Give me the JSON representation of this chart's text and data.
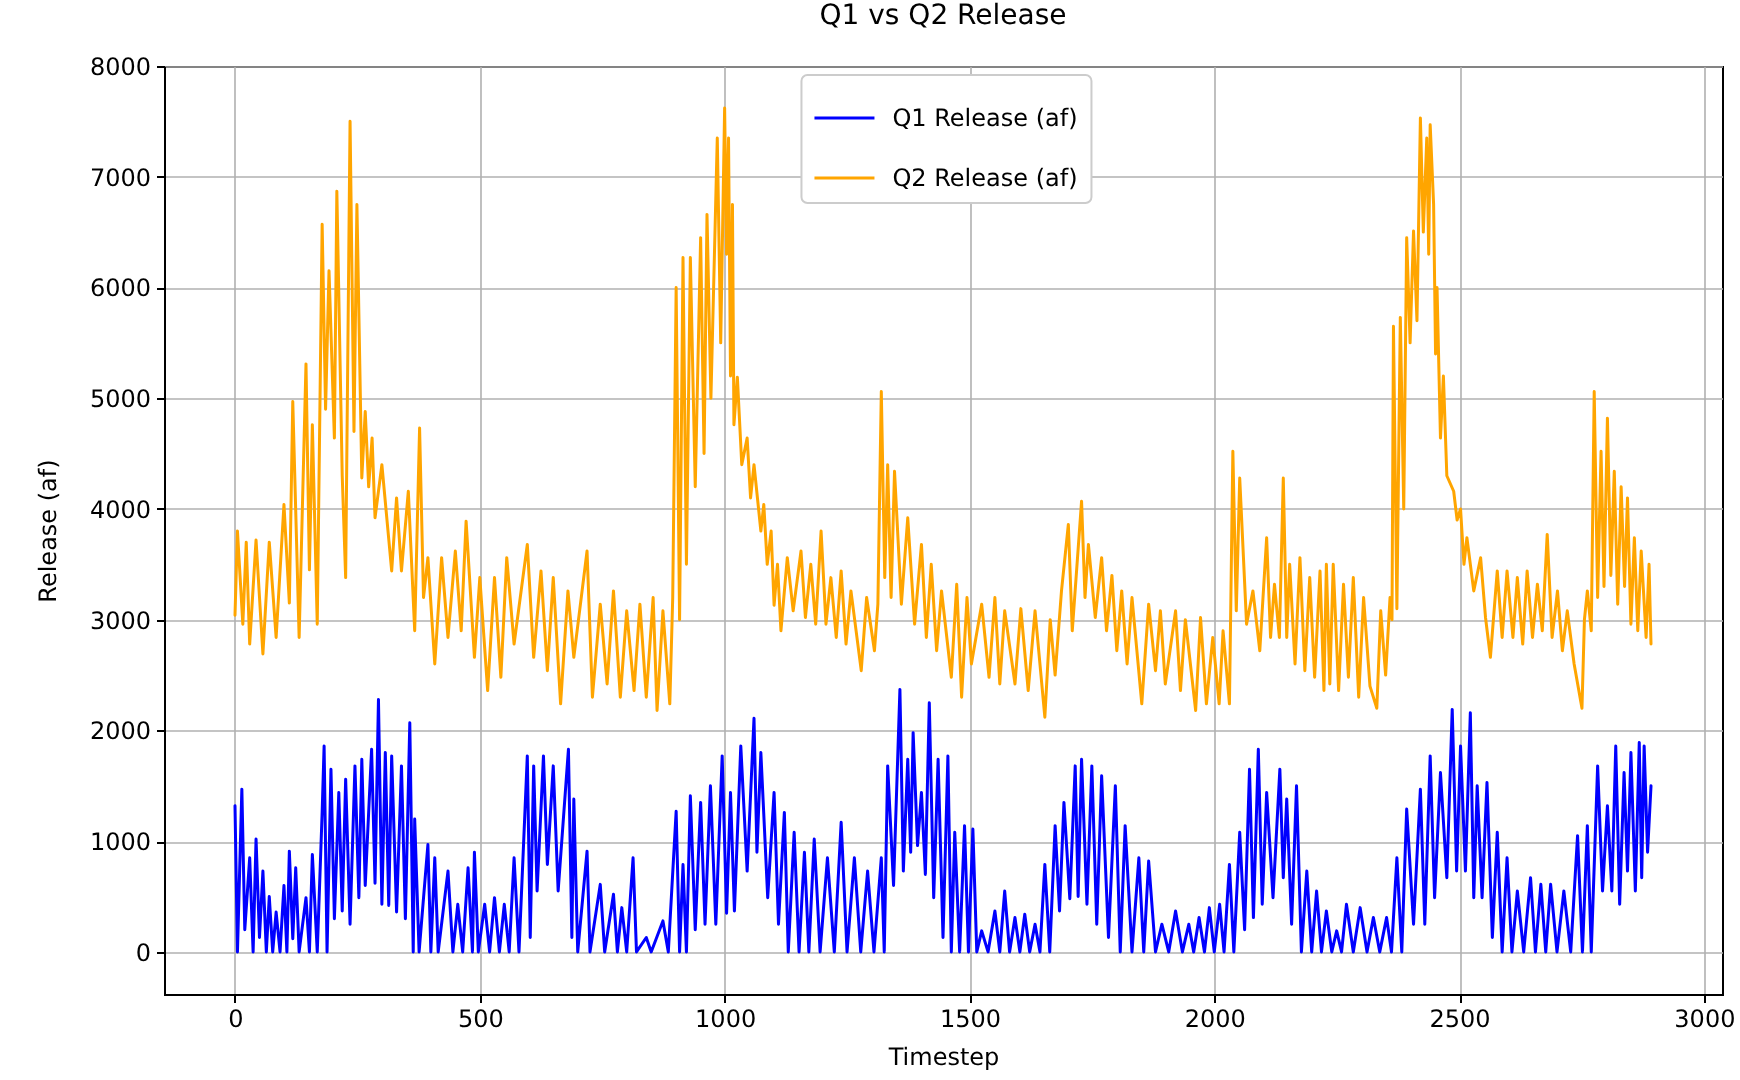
{
  "chart_data": {
    "type": "line",
    "title": "Q1 vs Q2 Release",
    "xlabel": "Timestep",
    "ylabel": "Release (af)",
    "xlim": [
      -145,
      3037
    ],
    "ylim": [
      -380,
      8000
    ],
    "xticks": [
      0,
      500,
      1000,
      1500,
      2000,
      2500,
      3000
    ],
    "yticks": [
      0,
      1000,
      2000,
      3000,
      4000,
      5000,
      6000,
      7000,
      8000
    ],
    "grid": true,
    "legend": "top",
    "series": [
      {
        "name": "Q1 Release (af)",
        "color": "#0000ff",
        "x": [
          0,
          5,
          14,
          20,
          30,
          37,
          43,
          50,
          57,
          64,
          70,
          77,
          84,
          92,
          100,
          106,
          111,
          118,
          124,
          131,
          145,
          152,
          158,
          168,
          178,
          182,
          188,
          196,
          203,
          212,
          219,
          226,
          235,
          245,
          253,
          259,
          266,
          279,
          286,
          293,
          300,
          307,
          314,
          320,
          330,
          340,
          348,
          357,
          364,
          367,
          376,
          394,
          400,
          408,
          415,
          435,
          445,
          455,
          465,
          476,
          485,
          489,
          497,
          510,
          520,
          530,
          540,
          550,
          560,
          570,
          580,
          597,
          603,
          610,
          617,
          630,
          638,
          650,
          660,
          681,
          688,
          692,
          700,
          719,
          725,
          746,
          755,
          773,
          781,
          790,
          800,
          813,
          820,
          840,
          850,
          874,
          885,
          901,
          908,
          915,
          922,
          930,
          940,
          951,
          960,
          971,
          982,
          995,
          1004,
          1012,
          1020,
          1033,
          1046,
          1060,
          1066,
          1074,
          1088,
          1101,
          1110,
          1122,
          1130,
          1142,
          1152,
          1163,
          1172,
          1183,
          1195,
          1210,
          1224,
          1238,
          1250,
          1265,
          1278,
          1292,
          1305,
          1320,
          1326,
          1333,
          1345,
          1358,
          1365,
          1374,
          1380,
          1385,
          1394,
          1402,
          1410,
          1418,
          1427,
          1436,
          1446,
          1456,
          1463,
          1470,
          1480,
          1490,
          1498,
          1507,
          1515,
          1525,
          1538,
          1552,
          1562,
          1572,
          1582,
          1593,
          1603,
          1613,
          1623,
          1634,
          1644,
          1654,
          1664,
          1675,
          1684,
          1693,
          1705,
          1716,
          1722,
          1729,
          1740,
          1750,
          1760,
          1770,
          1784,
          1798,
          1808,
          1818,
          1832,
          1846,
          1856,
          1866,
          1880,
          1893,
          1907,
          1921,
          1935,
          1948,
          1958,
          1969,
          1980,
          1990,
          2000,
          2011,
          2020,
          2031,
          2040,
          2052,
          2062,
          2072,
          2080,
          2090,
          2098,
          2107,
          2120,
          2134,
          2141,
          2148,
          2158,
          2168,
          2178,
          2189,
          2199,
          2209,
          2219,
          2229,
          2240,
          2250,
          2260,
          2270,
          2284,
          2298,
          2312,
          2325,
          2338,
          2352,
          2362,
          2373,
          2383,
          2393,
          2407,
          2421,
          2430,
          2441,
          2450,
          2462,
          2475,
          2486,
          2495,
          2503,
          2513,
          2523,
          2530,
          2537,
          2547,
          2557,
          2568,
          2578,
          2588,
          2598,
          2608,
          2619,
          2632,
          2646,
          2656,
          2667,
          2677,
          2687,
          2700,
          2714,
          2728,
          2742,
          2752,
          2762,
          2770,
          2783,
          2793,
          2803,
          2812,
          2820,
          2828,
          2837,
          2844,
          2851,
          2860,
          2868,
          2873,
          2878,
          2885,
          2892
        ],
        "values": [
          1320,
          0,
          1470,
          200,
          850,
          0,
          1020,
          130,
          730,
          0,
          500,
          0,
          360,
          0,
          600,
          0,
          910,
          120,
          760,
          0,
          490,
          0,
          880,
          0,
          1260,
          1860,
          0,
          1650,
          300,
          1440,
          370,
          1560,
          250,
          1680,
          490,
          1740,
          600,
          1830,
          620,
          2280,
          430,
          1800,
          420,
          1770,
          360,
          1680,
          300,
          2070,
          0,
          1200,
          0,
          970,
          0,
          850,
          0,
          730,
          0,
          430,
          0,
          760,
          0,
          900,
          0,
          430,
          0,
          490,
          0,
          430,
          0,
          850,
          0,
          1770,
          130,
          1680,
          550,
          1770,
          790,
          1680,
          550,
          1830,
          130,
          1380,
          0,
          910,
          0,
          610,
          0,
          520,
          0,
          400,
          0,
          850,
          0,
          130,
          0,
          280,
          0,
          1270,
          0,
          790,
          0,
          1410,
          200,
          1350,
          250,
          1500,
          250,
          1770,
          350,
          1440,
          370,
          1860,
          730,
          2110,
          900,
          1800,
          490,
          1440,
          250,
          1260,
          0,
          1080,
          0,
          900,
          0,
          1020,
          0,
          850,
          0,
          1170,
          0,
          850,
          0,
          730,
          0,
          850,
          0,
          1680,
          600,
          2370,
          730,
          1740,
          900,
          1980,
          960,
          1440,
          700,
          2250,
          490,
          1740,
          130,
          1770,
          0,
          1080,
          0,
          1140,
          0,
          1110,
          0,
          190,
          0,
          370,
          0,
          550,
          0,
          310,
          0,
          340,
          0,
          250,
          0,
          790,
          0,
          1140,
          370,
          1350,
          480,
          1680,
          500,
          1740,
          430,
          1680,
          250,
          1590,
          130,
          1500,
          0,
          1140,
          0,
          850,
          0,
          820,
          0,
          250,
          0,
          370,
          0,
          250,
          0,
          310,
          0,
          400,
          0,
          430,
          0,
          790,
          0,
          1080,
          200,
          1650,
          310,
          1830,
          430,
          1440,
          490,
          1650,
          670,
          1380,
          250,
          1500,
          0,
          730,
          0,
          550,
          0,
          370,
          0,
          190,
          0,
          430,
          0,
          400,
          0,
          310,
          0,
          310,
          0,
          850,
          0,
          1290,
          250,
          1470,
          250,
          1770,
          490,
          1620,
          670,
          2190,
          730,
          1860,
          730,
          2160,
          490,
          1500,
          490,
          1530,
          130,
          1080,
          0,
          850,
          0,
          550,
          0,
          670,
          0,
          610,
          0,
          610,
          0,
          550,
          0,
          1050,
          0,
          1140,
          0,
          1680,
          550,
          1320,
          550,
          1860,
          430,
          1620,
          730,
          1800,
          550,
          1890,
          670,
          1860,
          900,
          1500
        ]
      },
      {
        "name": "Q2 Release (af)",
        "color": "#ffa500",
        "x": [
          0,
          5,
          16,
          23,
          30,
          43,
          57,
          70,
          84,
          100,
          111,
          118,
          131,
          145,
          152,
          158,
          168,
          178,
          185,
          192,
          203,
          208,
          219,
          226,
          235,
          243,
          249,
          259,
          266,
          273,
          280,
          286,
          300,
          320,
          330,
          340,
          354,
          367,
          377,
          385,
          394,
          408,
          422,
          435,
          450,
          462,
          472,
          489,
          500,
          516,
          530,
          543,
          555,
          570,
          597,
          610,
          625,
          638,
          650,
          665,
          680,
          692,
          719,
          730,
          746,
          760,
          773,
          787,
          800,
          815,
          827,
          840,
          854,
          862,
          874,
          888,
          894,
          901,
          908,
          915,
          922,
          930,
          940,
          951,
          958,
          964,
          972,
          985,
          992,
          1000,
          1004,
          1008,
          1012,
          1016,
          1019,
          1026,
          1035,
          1046,
          1053,
          1060,
          1074,
          1080,
          1087,
          1095,
          1101,
          1108,
          1115,
          1128,
          1140,
          1156,
          1165,
          1176,
          1186,
          1197,
          1207,
          1217,
          1228,
          1238,
          1248,
          1258,
          1279,
          1290,
          1306,
          1313,
          1320,
          1327,
          1333,
          1340,
          1347,
          1361,
          1374,
          1388,
          1402,
          1412,
          1422,
          1433,
          1443,
          1463,
          1474,
          1484,
          1495,
          1504,
          1525,
          1540,
          1552,
          1562,
          1572,
          1593,
          1605,
          1620,
          1634,
          1654,
          1665,
          1675,
          1688,
          1702,
          1710,
          1729,
          1736,
          1743,
          1757,
          1770,
          1780,
          1791,
          1801,
          1811,
          1822,
          1832,
          1852,
          1866,
          1880,
          1890,
          1900,
          1921,
          1931,
          1941,
          1962,
          1972,
          1984,
          1997,
          2010,
          2018,
          2031,
          2038,
          2045,
          2052,
          2066,
          2079,
          2093,
          2107,
          2115,
          2123,
          2133,
          2141,
          2148,
          2154,
          2165,
          2175,
          2185,
          2195,
          2205,
          2216,
          2224,
          2229,
          2236,
          2243,
          2254,
          2264,
          2274,
          2284,
          2295,
          2305,
          2318,
          2332,
          2340,
          2350,
          2359,
          2363,
          2366,
          2373,
          2380,
          2387,
          2393,
          2400,
          2407,
          2414,
          2421,
          2427,
          2434,
          2438,
          2441,
          2448,
          2452,
          2455,
          2462,
          2468,
          2475,
          2489,
          2496,
          2503,
          2510,
          2516,
          2530,
          2544,
          2554,
          2564,
          2578,
          2588,
          2598,
          2610,
          2619,
          2630,
          2639,
          2650,
          2660,
          2670,
          2680,
          2690,
          2701,
          2711,
          2721,
          2735,
          2751,
          2756,
          2762,
          2770,
          2776,
          2783,
          2790,
          2796,
          2803,
          2810,
          2817,
          2824,
          2831,
          2838,
          2844,
          2851,
          2858,
          2865,
          2872,
          2882,
          2888,
          2892
        ],
        "values": [
          3040,
          3800,
          2960,
          3700,
          2780,
          3720,
          2690,
          3700,
          2840,
          4040,
          3150,
          4970,
          2840,
          5310,
          3450,
          4760,
          2960,
          6570,
          4900,
          6150,
          4640,
          6870,
          4300,
          3380,
          7500,
          4700,
          6750,
          4280,
          4880,
          4200,
          4640,
          3920,
          4400,
          3440,
          4100,
          3440,
          4160,
          2900,
          4730,
          3200,
          3560,
          2600,
          3560,
          2840,
          3620,
          2900,
          3890,
          2660,
          3380,
          2360,
          3380,
          2480,
          3560,
          2780,
          3680,
          2660,
          3440,
          2540,
          3380,
          2240,
          3260,
          2660,
          3620,
          2300,
          3140,
          2420,
          3260,
          2300,
          3080,
          2360,
          3140,
          2300,
          3200,
          2180,
          3080,
          2240,
          3200,
          6000,
          3000,
          6270,
          3500,
          6270,
          4200,
          6450,
          4500,
          6660,
          5000,
          7350,
          5500,
          7620,
          6300,
          7350,
          5200,
          6750,
          4760,
          5190,
          4400,
          4640,
          4100,
          4400,
          3800,
          4040,
          3500,
          3800,
          3130,
          3500,
          2900,
          3560,
          3080,
          3620,
          3020,
          3500,
          2960,
          3800,
          2960,
          3380,
          2840,
          3440,
          2780,
          3260,
          2540,
          3200,
          2720,
          3140,
          5060,
          3380,
          4400,
          3200,
          4340,
          3140,
          3920,
          2960,
          3680,
          2840,
          3500,
          2720,
          3260,
          2480,
          3320,
          2300,
          3200,
          2600,
          3140,
          2480,
          3200,
          2420,
          3080,
          2420,
          3100,
          2360,
          3080,
          2120,
          3000,
          2500,
          3260,
          3860,
          2900,
          4070,
          3200,
          3680,
          3020,
          3560,
          2900,
          3400,
          2720,
          3260,
          2600,
          3200,
          2240,
          3140,
          2540,
          3080,
          2420,
          3080,
          2360,
          3000,
          2180,
          3020,
          2240,
          2840,
          2240,
          2900,
          2240,
          4520,
          3080,
          4280,
          2960,
          3260,
          2720,
          3740,
          2840,
          3320,
          2840,
          4280,
          2840,
          3500,
          2600,
          3560,
          2540,
          3380,
          2480,
          3440,
          2360,
          3500,
          2420,
          3500,
          2360,
          3320,
          2480,
          3380,
          2300,
          3200,
          2400,
          2200,
          3080,
          2500,
          3200,
          3000,
          5650,
          3100,
          5730,
          4000,
          6450,
          5500,
          6510,
          5700,
          7530,
          6500,
          7350,
          6300,
          7470,
          6750,
          5400,
          6000,
          4640,
          5200,
          4300,
          4160,
          3900,
          4000,
          3500,
          3740,
          3260,
          3560,
          3020,
          2660,
          3440,
          2840,
          3440,
          2840,
          3380,
          2780,
          3440,
          2840,
          3320,
          2900,
          3770,
          2840,
          3260,
          2720,
          3080,
          2600,
          2200,
          3000,
          3260,
          2900,
          5060,
          3200,
          4520,
          3300,
          4820,
          3400,
          4340,
          3140,
          4200,
          3300,
          4100,
          2960,
          3740,
          2900,
          3620,
          2840,
          3500,
          2780
        ]
      }
    ]
  }
}
